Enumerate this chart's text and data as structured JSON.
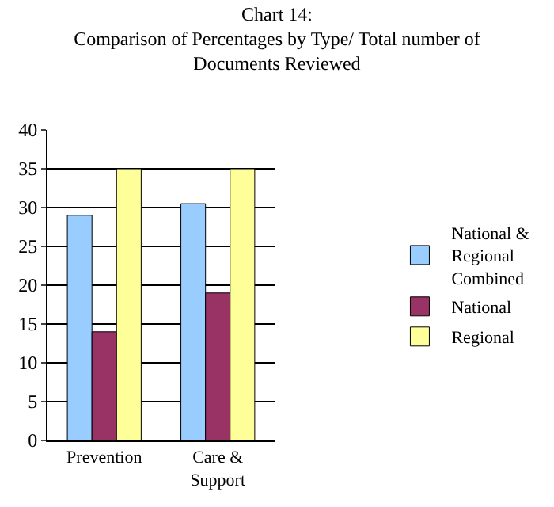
{
  "chart_data": {
    "type": "bar",
    "title": "Chart 14:\nComparison of Percentages by Type/ Total number of\nDocuments Reviewed",
    "categories": [
      "Prevention",
      "Care & Support"
    ],
    "series": [
      {
        "name": "National & Regional Combined",
        "color": "#99ccff",
        "values": [
          29,
          30.5
        ]
      },
      {
        "name": "National",
        "color": "#993366",
        "values": [
          14,
          19
        ]
      },
      {
        "name": "Regional",
        "color": "#ffff99",
        "values": [
          35,
          35
        ]
      }
    ],
    "ylim": [
      0,
      40
    ],
    "yticks": [
      0,
      5,
      10,
      15,
      20,
      25,
      30,
      35,
      40
    ],
    "grid": "y",
    "legend": "right"
  }
}
